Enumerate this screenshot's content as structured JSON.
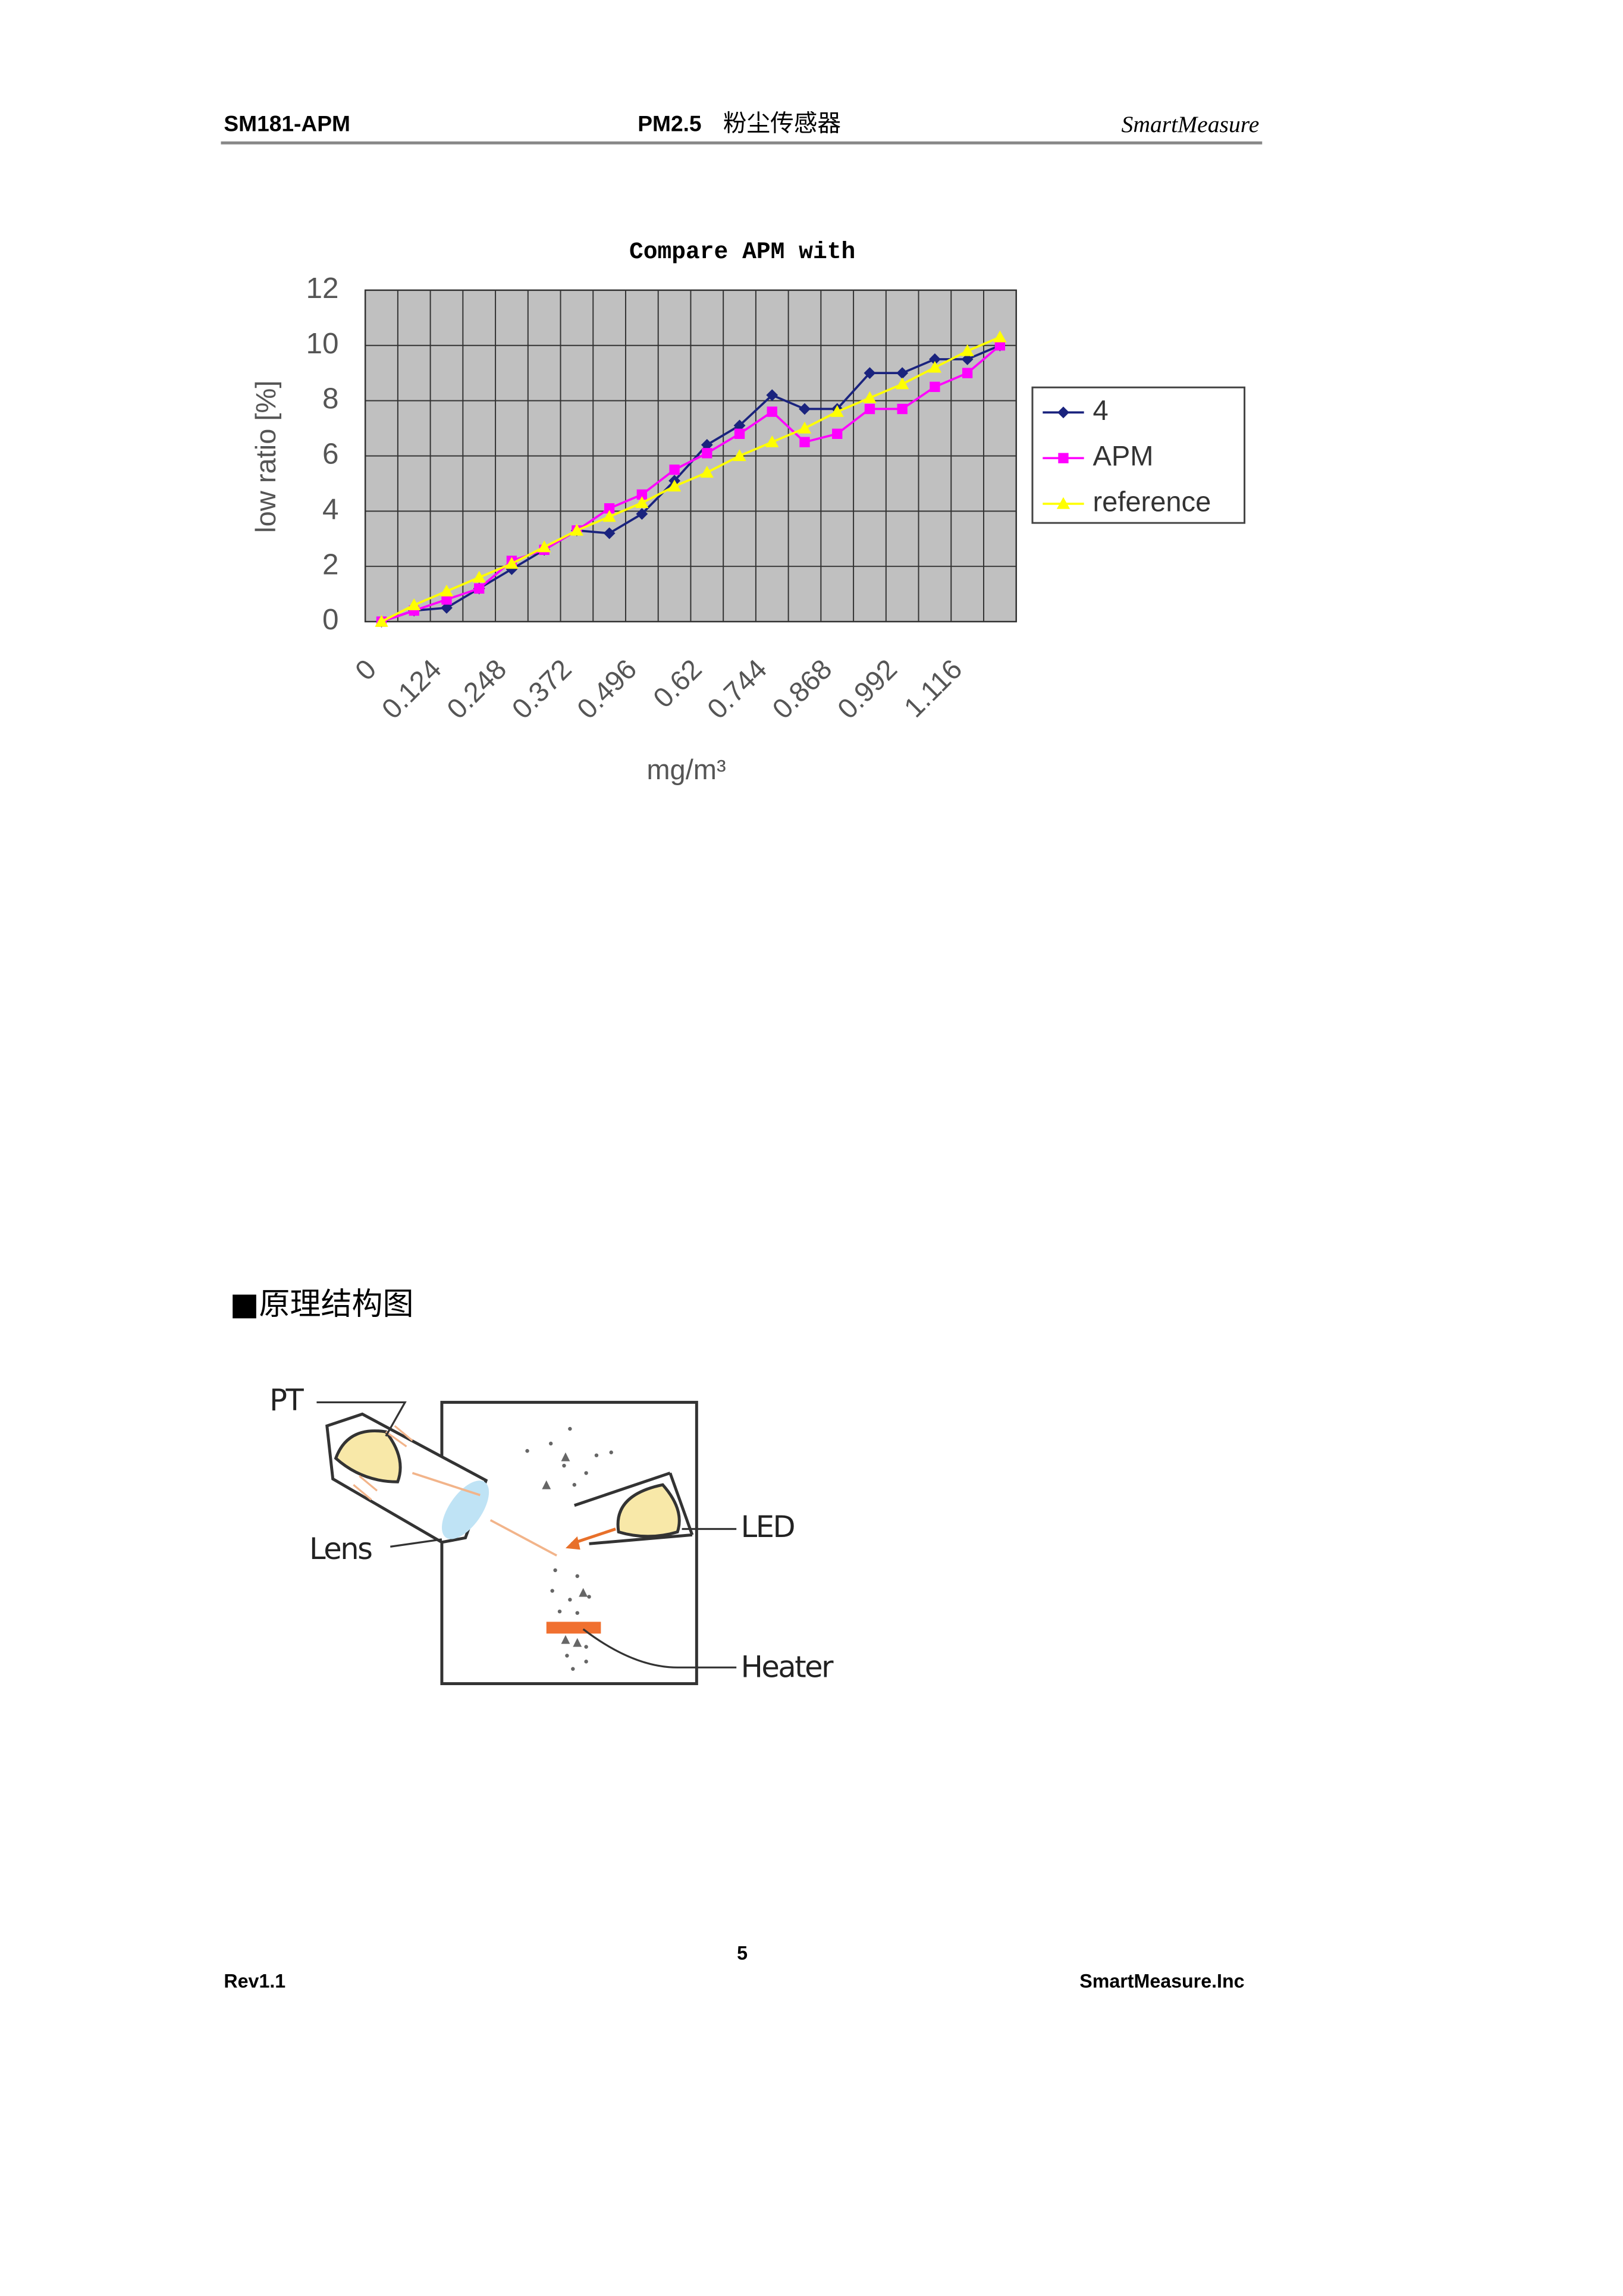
{
  "header": {
    "left": "SM181-APM",
    "center": "PM2.5",
    "center_sub": "粉尘传感器",
    "right": "SmartMeasure"
  },
  "chart_data": {
    "type": "line",
    "title": "Compare APM with",
    "ylabel": "low ratio [%]",
    "xlabel": "mg/m³",
    "categories": [
      "0",
      null,
      "0.124",
      null,
      "0.248",
      null,
      "0.372",
      null,
      "0.496",
      null,
      "0.62",
      null,
      "0.744",
      null,
      "0.868",
      null,
      "0.992",
      null,
      "1.116",
      null
    ],
    "series": [
      {
        "name": "4",
        "color": "#1a237e",
        "marker": "diamond",
        "values": [
          0,
          0.4,
          0.5,
          1.2,
          1.9,
          2.6,
          3.3,
          3.2,
          3.9,
          5.1,
          6.4,
          7.1,
          8.2,
          7.7,
          7.7,
          9.0,
          9.0,
          9.5,
          9.5,
          10.0
        ]
      },
      {
        "name": "APM",
        "color": "#ff00ff",
        "marker": "square",
        "values": [
          0,
          0.4,
          0.8,
          1.2,
          2.2,
          2.6,
          3.3,
          4.1,
          4.6,
          5.5,
          6.1,
          6.8,
          7.6,
          6.5,
          6.8,
          7.7,
          7.7,
          8.5,
          9.0,
          10.0
        ]
      },
      {
        "name": "reference",
        "color": "#ffff00",
        "marker": "triangle",
        "values": [
          0,
          0.6,
          1.1,
          1.6,
          2.1,
          2.7,
          3.3,
          3.8,
          4.3,
          4.9,
          5.4,
          6.0,
          6.5,
          7.0,
          7.6,
          8.1,
          8.6,
          9.2,
          9.8,
          10.3
        ]
      }
    ],
    "ylim": [
      0,
      12
    ],
    "yticks": [
      0,
      2,
      4,
      6,
      8,
      10,
      12
    ],
    "grid": true,
    "legend": "right",
    "plot_background": "#c0c0c0"
  },
  "section": {
    "heading": "■原理结构图"
  },
  "diagram": {
    "labels": [
      "PT",
      "Lens",
      "LED",
      "Heater"
    ]
  },
  "footer": {
    "page": "5",
    "left": "Rev1.1",
    "right": "SmartMeasure.Inc"
  }
}
